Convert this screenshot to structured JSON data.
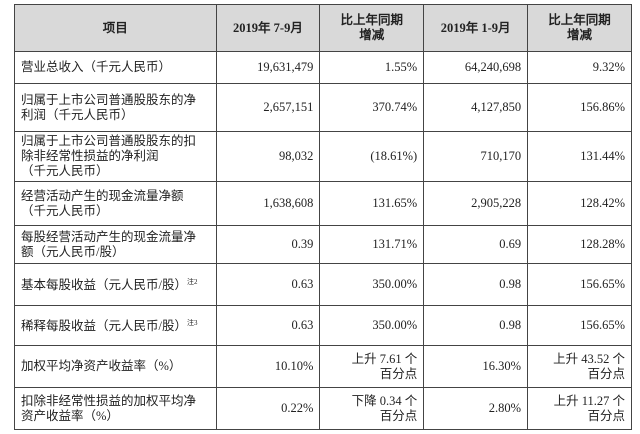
{
  "table": {
    "header": [
      [
        "项目"
      ],
      [
        "2019年 7-9月"
      ],
      [
        "比上年同期",
        "增减"
      ],
      [
        "2019年 1-9月"
      ],
      [
        "比上年同期",
        "增减"
      ]
    ],
    "rows": [
      {
        "label": [
          "营业总收入（千元人民币）"
        ],
        "values": [
          [
            "19,631,479"
          ],
          [
            "1.55%"
          ],
          [
            "64,240,698"
          ],
          [
            "9.32%"
          ]
        ]
      },
      {
        "label": [
          "归属于上市公司普通股股东的净",
          "利润（千元人民币）"
        ],
        "values": [
          [
            "2,657,151"
          ],
          [
            "370.74%"
          ],
          [
            "4,127,850"
          ],
          [
            "156.86%"
          ]
        ]
      },
      {
        "label": [
          "归属于上市公司普通股股东的扣",
          "除非经常性损益的净利润",
          "（千元人民币）"
        ],
        "values": [
          [
            "98,032"
          ],
          [
            "(18.61%)"
          ],
          [
            "710,170"
          ],
          [
            "131.44%"
          ]
        ]
      },
      {
        "label": [
          "经营活动产生的现金流量净额",
          "（千元人民币）"
        ],
        "values": [
          [
            "1,638,608"
          ],
          [
            "131.65%"
          ],
          [
            "2,905,228"
          ],
          [
            "128.42%"
          ]
        ]
      },
      {
        "label": [
          "每股经营活动产生的现金流量净",
          "额（元人民币/股）"
        ],
        "values": [
          [
            "0.39"
          ],
          [
            "131.71%"
          ],
          [
            "0.69"
          ],
          [
            "128.28%"
          ]
        ]
      },
      {
        "label": [
          "基本每股收益（元人民币/股）"
        ],
        "note": "注2",
        "values": [
          [
            "0.63"
          ],
          [
            "350.00%"
          ],
          [
            "0.98"
          ],
          [
            "156.65%"
          ]
        ]
      },
      {
        "label": [
          "稀释每股收益（元人民币/股）"
        ],
        "note": "注3",
        "values": [
          [
            "0.63"
          ],
          [
            "350.00%"
          ],
          [
            "0.98"
          ],
          [
            "156.65%"
          ]
        ]
      },
      {
        "label": [
          "加权平均净资产收益率（%）"
        ],
        "values": [
          [
            "10.10%"
          ],
          [
            "上升 7.61 个",
            "百分点"
          ],
          [
            "16.30%"
          ],
          [
            "上升 43.52 个",
            "百分点"
          ]
        ]
      },
      {
        "label": [
          "扣除非经常性损益的加权平均净",
          "资产收益率（%）"
        ],
        "values": [
          [
            "0.22%"
          ],
          [
            "下降 0.34 个",
            "百分点"
          ],
          [
            "2.80%"
          ],
          [
            "上升 11.27 个",
            "百分点"
          ]
        ]
      }
    ]
  }
}
